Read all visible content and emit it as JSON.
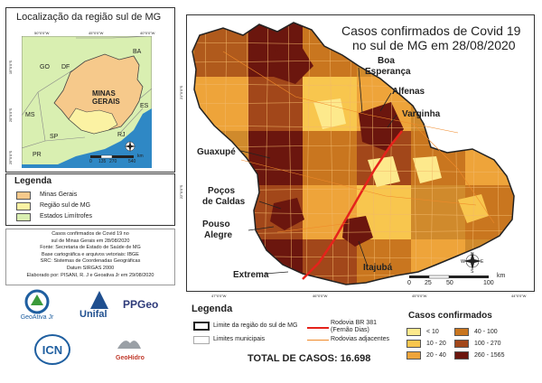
{
  "inset": {
    "title": "Localização da região sul de MG",
    "grid_top": [
      "50°0'0\"W",
      "45°0'0\"W",
      "40°0'0\"W"
    ],
    "grid_left": [
      "15°0'0\"S",
      "20°0'0\"S",
      "25°0'0\"S"
    ],
    "state_labels": [
      "BA",
      "GO",
      "DF",
      "MS",
      "SP",
      "RJ",
      "ES",
      "PR"
    ],
    "minas_label_1": "MINAS",
    "minas_label_2": "GERAIS",
    "scale_ticks": [
      "0",
      "135",
      "270",
      "540"
    ],
    "scale_unit": "km"
  },
  "legend_left": {
    "title": "Legenda",
    "items": [
      "Minas Gerais",
      "Região sul de MG",
      "Estados Limítrofes"
    ],
    "colors": [
      "#f6c98b",
      "#fbf2a3",
      "#d9efb1"
    ]
  },
  "credits": [
    "Casos confirmados de Covid 19 no",
    "sul de Minas Gerais em 28/08/2020",
    "Fonte: Secretaria de Estado de Saúde de MG",
    "Base cartográfica e arquivos vetoriais: IBGE",
    "SRC: Sistemas de Coordenadas Geográficas",
    "Datum SIRGAS 2000",
    "Elaborado por: PISANI, R. J e Geoativa Jr em 29/08/2020"
  ],
  "logos": {
    "geoativa": "GeoAtiva Jr",
    "unifal": "Unifal",
    "ppgeo": "PPGeo",
    "icn": "ICN",
    "geohidro": "GeoHidro"
  },
  "map": {
    "title_1": "Casos confirmados de Covid 19",
    "title_2": "no sul de MG em 28/08/2020",
    "cities": [
      "Boa",
      "Esperança",
      "Alfenas",
      "Varginha",
      "Guaxupé",
      "Poços",
      "de Caldas",
      "Pouso",
      "Alegre",
      "Itajubá",
      "Extrema"
    ],
    "grid_bottom": [
      "47°0'0\"W",
      "46°0'0\"W",
      "45°0'0\"W",
      "44°0'0\"W"
    ],
    "grid_left": [
      "21°0'0\"S",
      "22°0'0\"S"
    ],
    "scale_ticks": [
      "0",
      "25",
      "50",
      "100"
    ],
    "scale_unit": "km",
    "compass": [
      "N",
      "S",
      "W",
      "E"
    ]
  },
  "legend_bottom": {
    "title": "Legenda",
    "region_limit": "Limite da região do sul de MG",
    "municipal_limit": "Limites municipais",
    "highway_1": "Rodovia BR 381",
    "highway_2": "(Fernão Dias)",
    "adjacent_roads": "Rodovias adjacentes",
    "total": "TOTAL DE CASOS: 16.698",
    "classes_title": "Casos confirmados",
    "classes": [
      "< 10",
      "10 - 20",
      "20 - 40",
      "40 - 100",
      "100 - 270",
      "260 - 1565"
    ],
    "class_colors": [
      "#fde98c",
      "#f8c64e",
      "#eea43a",
      "#c9761f",
      "#a2471a",
      "#6b160e"
    ]
  }
}
